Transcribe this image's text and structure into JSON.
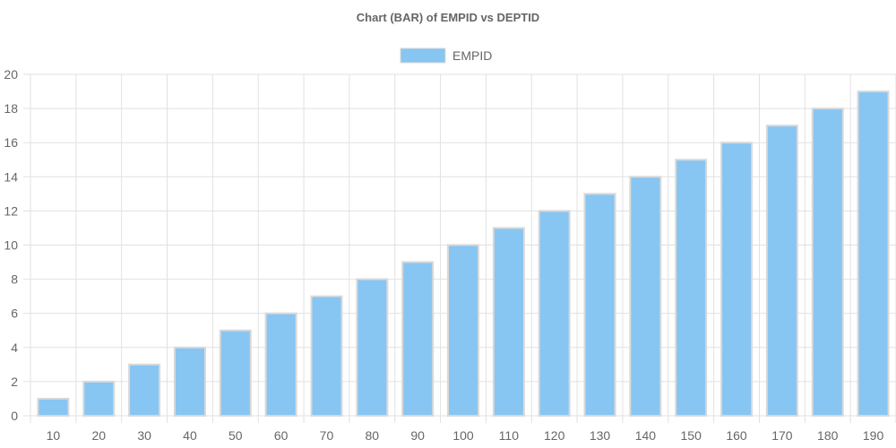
{
  "chart_data": {
    "type": "bar",
    "title": "Chart (BAR) of EMPID vs DEPTID",
    "xlabel": "",
    "ylabel": "",
    "categories": [
      "10",
      "20",
      "30",
      "40",
      "50",
      "60",
      "70",
      "80",
      "90",
      "100",
      "110",
      "120",
      "130",
      "140",
      "150",
      "160",
      "170",
      "180",
      "190"
    ],
    "series": [
      {
        "name": "EMPID",
        "values": [
          1,
          2,
          3,
          4,
          5,
          6,
          7,
          8,
          9,
          10,
          11,
          12,
          13,
          14,
          15,
          16,
          17,
          18,
          19
        ],
        "fill_color": "#87c5f2",
        "border_color": "#d9d9d9"
      }
    ],
    "ylim": [
      0,
      20
    ],
    "y_ticks": [
      "0",
      "2",
      "4",
      "6",
      "8",
      "10",
      "12",
      "14",
      "16",
      "18",
      "20"
    ],
    "grid": true,
    "legend_position": "top-center"
  },
  "colors": {
    "title": "#666666",
    "ticks": "#666666",
    "grid": "#e1e1e1",
    "legend_text": "#666666"
  }
}
